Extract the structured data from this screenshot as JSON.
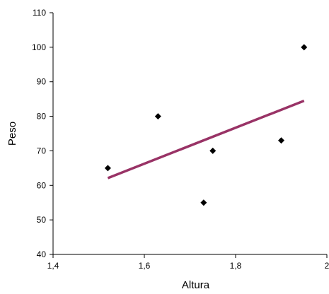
{
  "chart_data": {
    "type": "scatter",
    "title": "",
    "xlabel": "Altura",
    "ylabel": "Peso",
    "xlim": [
      1.4,
      2
    ],
    "ylim": [
      40,
      110
    ],
    "xticks": [
      1.4,
      1.6,
      1.8,
      2
    ],
    "xtick_labels": [
      "1,4",
      "1,6",
      "1,8",
      "2"
    ],
    "yticks": [
      40,
      50,
      60,
      70,
      80,
      90,
      100,
      110
    ],
    "ytick_labels": [
      "40",
      "50",
      "60",
      "70",
      "80",
      "90",
      "100",
      "110"
    ],
    "grid": false,
    "legend": "none",
    "points": [
      {
        "x": 1.52,
        "y": 65
      },
      {
        "x": 1.63,
        "y": 80
      },
      {
        "x": 1.73,
        "y": 55
      },
      {
        "x": 1.75,
        "y": 70
      },
      {
        "x": 1.9,
        "y": 73
      },
      {
        "x": 1.95,
        "y": 100
      }
    ],
    "trendline": {
      "type": "linear",
      "from": {
        "x": 1.52,
        "y": 62.1
      },
      "to": {
        "x": 1.95,
        "y": 84.5
      }
    },
    "colors": {
      "points": "#000000",
      "trendline": "#993366",
      "axes": "#000000"
    }
  }
}
